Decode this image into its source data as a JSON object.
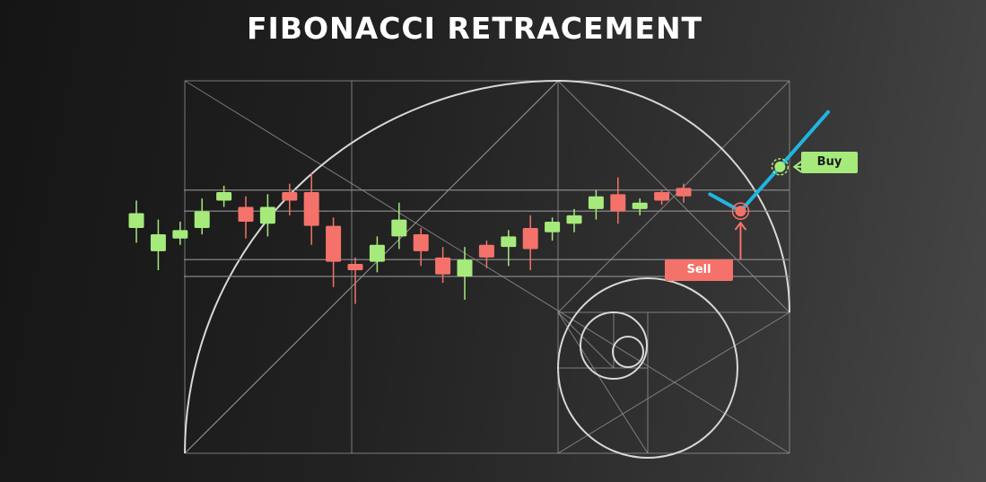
{
  "title": "FIBONACCI RETRACEMENT",
  "colors": {
    "bull": "#a6ea7c",
    "bear": "#f4726a",
    "trend": "#1fb6e0",
    "guides": "#9a9a9a",
    "spiral": "#d8d8d8"
  },
  "chart_data": {
    "type": "candlestick",
    "title": "FIBONACCI RETRACEMENT",
    "ylim": [
      0,
      100
    ],
    "fib_levels": [
      78,
      68,
      45,
      37
    ],
    "candles": [
      {
        "open": 60,
        "close": 67,
        "high": 73,
        "low": 53
      },
      {
        "open": 49,
        "close": 57,
        "high": 64,
        "low": 40
      },
      {
        "open": 55,
        "close": 59,
        "high": 63,
        "low": 52
      },
      {
        "open": 60,
        "close": 68,
        "high": 74,
        "low": 57
      },
      {
        "open": 73,
        "close": 77,
        "high": 80,
        "low": 70
      },
      {
        "open": 70,
        "close": 63,
        "high": 75,
        "low": 55
      },
      {
        "open": 62,
        "close": 70,
        "high": 76,
        "low": 56
      },
      {
        "open": 77,
        "close": 73,
        "high": 81,
        "low": 66
      },
      {
        "open": 77,
        "close": 61,
        "high": 86,
        "low": 52
      },
      {
        "open": 61,
        "close": 44,
        "high": 65,
        "low": 32
      },
      {
        "open": 43,
        "close": 40,
        "high": 46,
        "low": 24
      },
      {
        "open": 44,
        "close": 52,
        "high": 56,
        "low": 39
      },
      {
        "open": 56,
        "close": 64,
        "high": 72,
        "low": 50
      },
      {
        "open": 57,
        "close": 49,
        "high": 60,
        "low": 42
      },
      {
        "open": 46,
        "close": 38,
        "high": 51,
        "low": 34
      },
      {
        "open": 37,
        "close": 45,
        "high": 51,
        "low": 26
      },
      {
        "open": 52,
        "close": 46,
        "high": 54,
        "low": 41
      },
      {
        "open": 51,
        "close": 56,
        "high": 59,
        "low": 42
      },
      {
        "open": 60,
        "close": 50,
        "high": 66,
        "low": 40
      },
      {
        "open": 58,
        "close": 63,
        "high": 65,
        "low": 54
      },
      {
        "open": 62,
        "close": 66,
        "high": 69,
        "low": 58
      },
      {
        "open": 69,
        "close": 75,
        "high": 78,
        "low": 64
      },
      {
        "open": 76,
        "close": 68,
        "high": 84,
        "low": 62
      },
      {
        "open": 69,
        "close": 72,
        "high": 74,
        "low": 66
      },
      {
        "open": 77,
        "close": 73,
        "high": 78,
        "low": 71
      },
      {
        "open": 79,
        "close": 75,
        "high": 81,
        "low": 72
      }
    ],
    "trend_points": [
      {
        "x": 26.2,
        "y": 76
      },
      {
        "x": 27.6,
        "y": 68
      },
      {
        "x": 29.4,
        "y": 89
      },
      {
        "x": 31.6,
        "y": 115
      }
    ],
    "annotations": [
      {
        "label": "Buy",
        "x": 29.4,
        "y": 89,
        "kind": "buy"
      },
      {
        "label": "Sell",
        "x": 27.6,
        "y": 68,
        "kind": "sell"
      }
    ]
  }
}
